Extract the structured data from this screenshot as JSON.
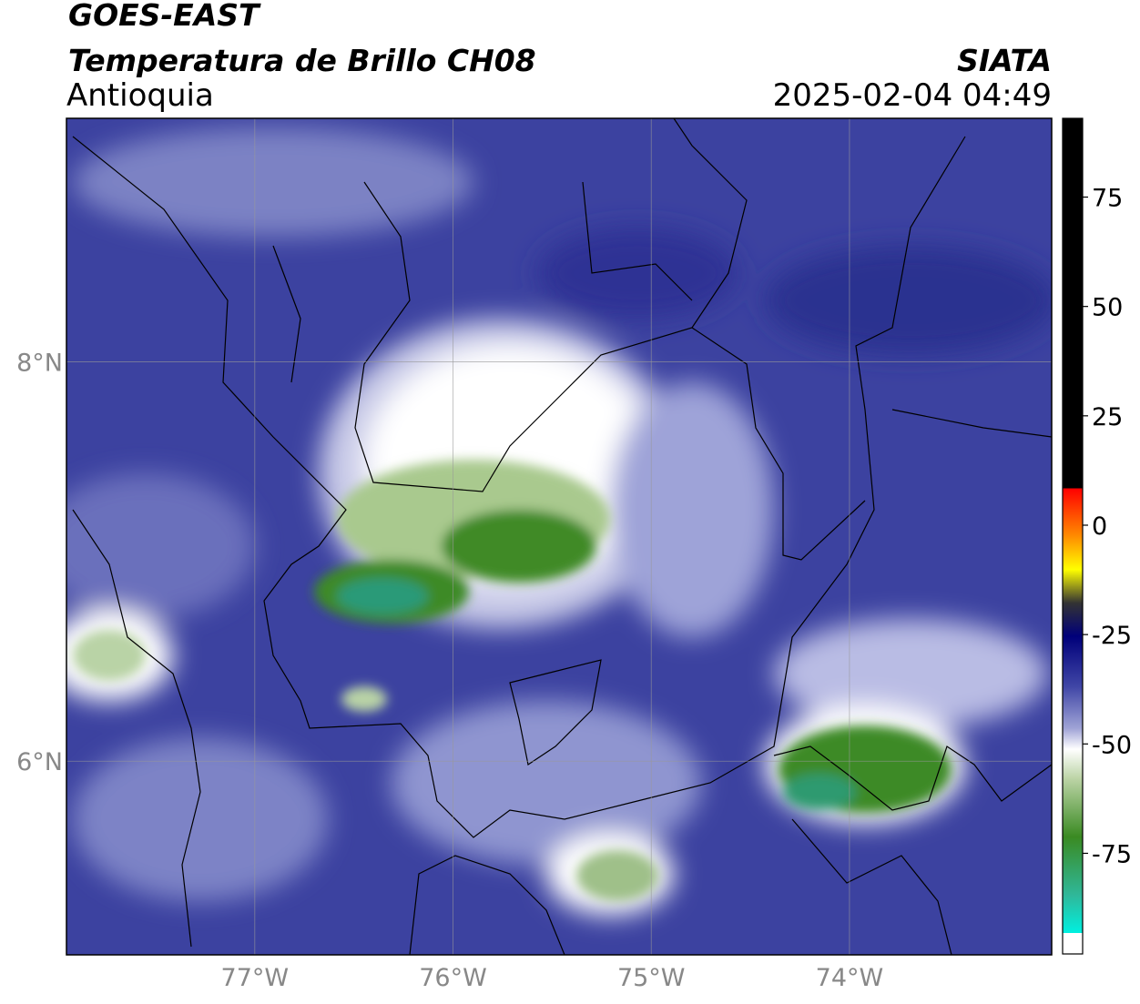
{
  "header": {
    "title": "GOES-EAST",
    "subtitle": "Temperatura de Brillo CH08",
    "region": "Antioquia",
    "source": "SIATA",
    "datetime": "2025-02-04 04:49"
  },
  "map": {
    "xlim": [
      -77.95,
      -72.98
    ],
    "ylim": [
      5.03,
      9.22
    ],
    "lon_ticks": [
      {
        "value": -77,
        "label": "77°W"
      },
      {
        "value": -76,
        "label": "76°W"
      },
      {
        "value": -75,
        "label": "75°W"
      },
      {
        "value": -74,
        "label": "74°W"
      }
    ],
    "lat_ticks": [
      {
        "value": 6,
        "label": "6°N"
      },
      {
        "value": 8,
        "label": "8°N"
      }
    ]
  },
  "colorbar": {
    "range": [
      -98,
      93
    ],
    "ticks": [
      75,
      50,
      25,
      0,
      -25,
      -50,
      -75
    ]
  }
}
